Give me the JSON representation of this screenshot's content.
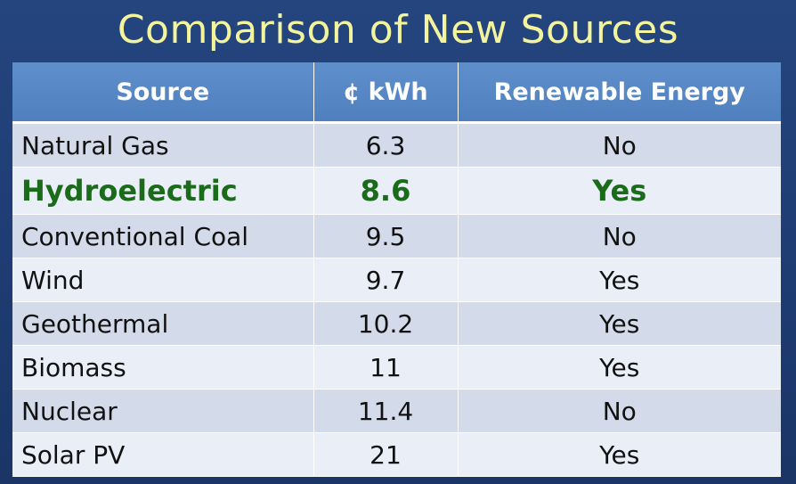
{
  "title": "Comparison of New Sources",
  "table": {
    "headers": [
      "Source",
      "¢ kWh",
      "Renewable Energy"
    ],
    "rows": [
      {
        "source": "Natural Gas",
        "cost": "6.3",
        "renewable": "No"
      },
      {
        "source": "Hydroelectric",
        "cost": "8.6",
        "renewable": "Yes",
        "highlighted": true
      },
      {
        "source": "Conventional Coal",
        "cost": "9.5",
        "renewable": "No"
      },
      {
        "source": "Wind",
        "cost": "9.7",
        "renewable": "Yes"
      },
      {
        "source": "Geothermal",
        "cost": "10.2",
        "renewable": "Yes"
      },
      {
        "source": "Biomass",
        "cost": "11",
        "renewable": "Yes"
      },
      {
        "source": "Nuclear",
        "cost": "11.4",
        "renewable": "No"
      },
      {
        "source": "Solar PV",
        "cost": "21",
        "renewable": "Yes"
      }
    ]
  },
  "colors": {
    "background": "#1f3d74",
    "title": "#f4f49c",
    "header": "#4f7fbe",
    "row_dark": "#d3dbea",
    "row_light": "#eaeef6",
    "highlight_text": "#1a6b1a"
  }
}
